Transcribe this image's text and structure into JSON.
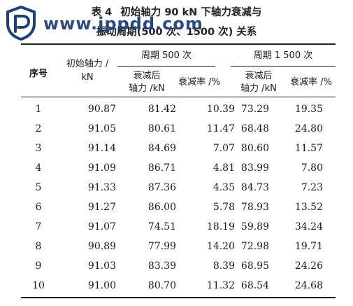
{
  "watermark": {
    "text": "www.jppdd.com"
  },
  "table": {
    "number": "表 4",
    "title_line1": "初始轴力 90 kN 下轴力衰减与",
    "title_line2": "振动周期(500 次、1500 次) 关系",
    "headers": {
      "seq": "序号",
      "initial_force": [
        "初始轴力 /",
        "kN"
      ],
      "period_500": "周期 500 次",
      "period_1500": "周期 1 500 次",
      "after_force": [
        "衰减后",
        "轴力 /kN"
      ],
      "rate": "衰减率 /%"
    },
    "rows": [
      [
        "1",
        "90.87",
        "81.42",
        "10.39",
        "73.29",
        "19.35"
      ],
      [
        "2",
        "91.05",
        "80.61",
        "11.47",
        "68.48",
        "24.80"
      ],
      [
        "3",
        "91.14",
        "84.69",
        "7.07",
        "80.60",
        "11.57"
      ],
      [
        "4",
        "91.09",
        "86.71",
        "4.81",
        "83.99",
        "7.80"
      ],
      [
        "5",
        "91.33",
        "87.36",
        "4.35",
        "84.73",
        "7.23"
      ],
      [
        "6",
        "91.27",
        "86.00",
        "5.78",
        "78.93",
        "13.52"
      ],
      [
        "7",
        "91.07",
        "74.51",
        "18.19",
        "59.89",
        "34.24"
      ],
      [
        "8",
        "90.89",
        "77.99",
        "14.20",
        "72.98",
        "19.71"
      ],
      [
        "9",
        "91.03",
        "83.39",
        "8.39",
        "68.95",
        "24.26"
      ],
      [
        "10",
        "91.00",
        "80.70",
        "11.32",
        "68.54",
        "24.68"
      ]
    ]
  }
}
